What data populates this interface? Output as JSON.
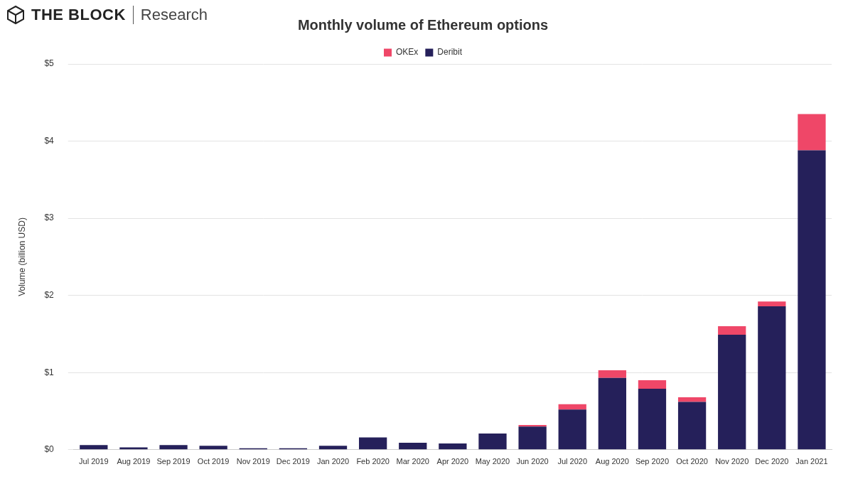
{
  "header": {
    "brand": "THE BLOCK",
    "section": "Research"
  },
  "chart_data": {
    "type": "bar",
    "title": "Monthly volume of Ethereum options",
    "y_label": "Volume (billion USD)",
    "categories": [
      "Jul 2019",
      "Aug 2019",
      "Sep 2019",
      "Oct 2019",
      "Nov 2019",
      "Dec 2019",
      "Jan 2020",
      "Feb 2020",
      "Mar 2020",
      "Apr 2020",
      "May 2020",
      "Jun 2020",
      "Jul 2020",
      "Aug 2020",
      "Sep 2020",
      "Oct 2020",
      "Nov 2020",
      "Dec 2020",
      "Jan 2021"
    ],
    "series": [
      {
        "name": "OKEx",
        "color": "#ef4768",
        "values": [
          0,
          0,
          0,
          0,
          0,
          0,
          0,
          0,
          0,
          0,
          0,
          0.02,
          0.07,
          0.1,
          0.11,
          0.06,
          0.11,
          0.06,
          0.47
        ]
      },
      {
        "name": "Deribit",
        "color": "#25205a",
        "values": [
          0.06,
          0.03,
          0.06,
          0.05,
          0.02,
          0.02,
          0.05,
          0.16,
          0.09,
          0.08,
          0.21,
          0.3,
          0.52,
          0.93,
          0.79,
          0.62,
          1.49,
          1.86,
          3.88
        ]
      }
    ],
    "stacked": true,
    "legend": "top",
    "grid": true,
    "ylim": [
      0,
      5
    ],
    "yticks": [
      {
        "value": 0,
        "label": "$0"
      },
      {
        "value": 1,
        "label": "$1"
      },
      {
        "value": 2,
        "label": "$2"
      },
      {
        "value": 3,
        "label": "$3"
      },
      {
        "value": 4,
        "label": "$4"
      },
      {
        "value": 5,
        "label": "$5"
      }
    ]
  }
}
